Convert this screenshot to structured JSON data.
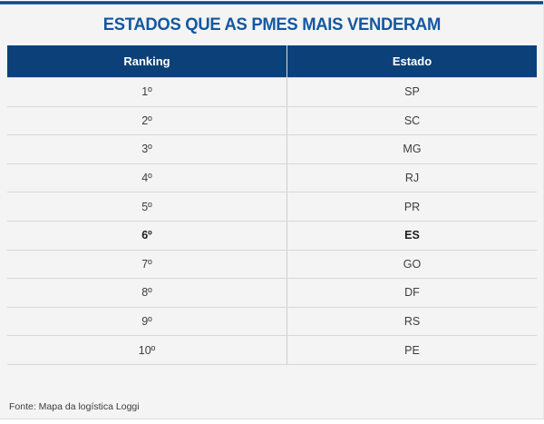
{
  "page": {
    "title": "ESTADOS QUE AS PMES MAIS VENDERAM",
    "source": "Fonte: Mapa da logística Loggi"
  },
  "table": {
    "columns": {
      "ranking": "Ranking",
      "estado": "Estado"
    },
    "rows": [
      {
        "ranking": "1º",
        "estado": "SP",
        "bold": false
      },
      {
        "ranking": "2º",
        "estado": "SC",
        "bold": false
      },
      {
        "ranking": "3º",
        "estado": "MG",
        "bold": false
      },
      {
        "ranking": "4º",
        "estado": "RJ",
        "bold": false
      },
      {
        "ranking": "5º",
        "estado": "PR",
        "bold": false
      },
      {
        "ranking": "6º",
        "estado": "ES",
        "bold": true
      },
      {
        "ranking": "7º",
        "estado": "GO",
        "bold": false
      },
      {
        "ranking": "8º",
        "estado": "DF",
        "bold": false
      },
      {
        "ranking": "9º",
        "estado": "RS",
        "bold": false
      },
      {
        "ranking": "10º",
        "estado": "PE",
        "bold": false
      }
    ]
  },
  "colors": {
    "accent_blue": "#1457a0",
    "header_navy": "#0b4178",
    "top_stripe_blue": "#11477e",
    "background": "#f4f4f4",
    "divider": "#d7d7d7",
    "body_text": "#3d3d3d"
  }
}
